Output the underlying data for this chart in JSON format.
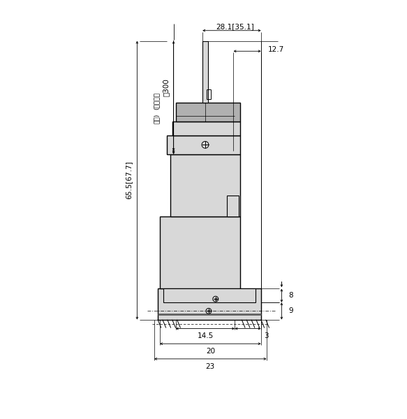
{
  "bg_color": "#ffffff",
  "line_color": "#000000",
  "fill_light": "#d8d8d8",
  "fill_dark": "#b0b0b0",
  "dims": {
    "cable_length": "約300",
    "lead_label_1": "(リード線",
    "lead_label_2": "長さ)",
    "top_width": "28.1[35.1]",
    "right_offset": "12.7",
    "total_height": "65.5[67.7]",
    "dim_8": "8",
    "dim_9": "9",
    "dim_14_5": "14.5",
    "dim_3": "3",
    "dim_20": "20",
    "dim_23": "23"
  }
}
